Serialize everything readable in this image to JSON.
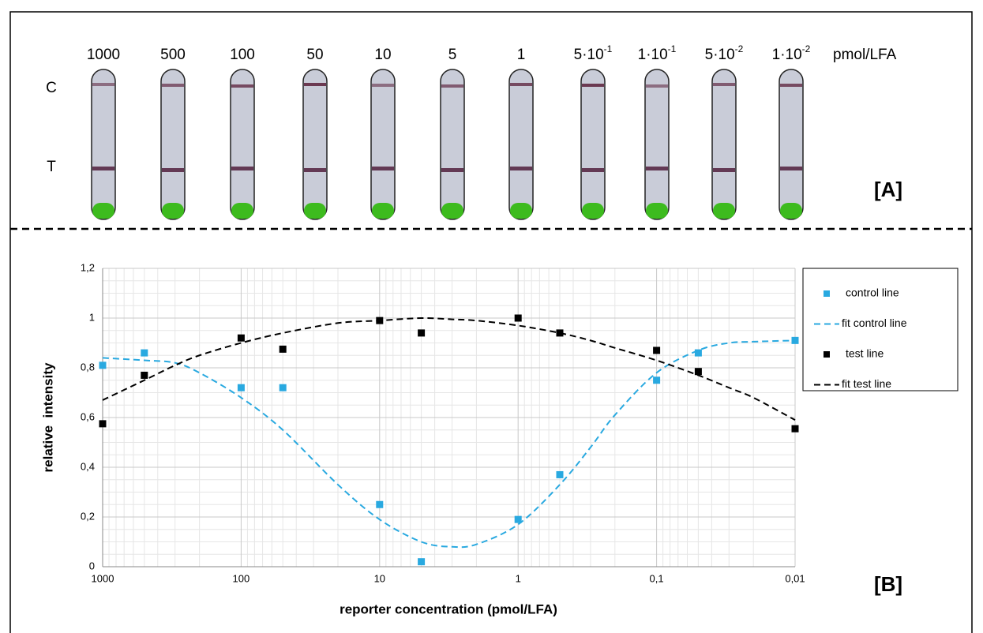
{
  "panel_a": {
    "labels": [
      "1000",
      "500",
      "100",
      "50",
      "10",
      "5",
      "1",
      {
        "base": "5·10",
        "exp": "-1"
      },
      {
        "base": "1·10",
        "exp": "-1"
      },
      {
        "base": "5·10",
        "exp": "-2"
      },
      {
        "base": "1·10",
        "exp": "-2"
      }
    ],
    "unit": "pmol/LFA",
    "c_label": "C",
    "t_label": "T",
    "tag": "[A]"
  },
  "chart_data": {
    "type": "scatter",
    "tag": "[B]",
    "x_label": "reporter concentration (pmol/LFA)",
    "y_label": "relative  intensity",
    "x_scale": "log",
    "xlim": [
      1000,
      0.01
    ],
    "xticks": [
      1000,
      100,
      10,
      1,
      {
        "value": 0.1,
        "label": "0,1"
      },
      {
        "value": 0.01,
        "label": "0,01"
      }
    ],
    "ylim": [
      0,
      1.2
    ],
    "yticks": [
      0,
      {
        "value": 0.2,
        "label": "0,2"
      },
      {
        "value": 0.4,
        "label": "0,4"
      },
      {
        "value": 0.6,
        "label": "0,6"
      },
      {
        "value": 0.8,
        "label": "0,8"
      },
      1,
      {
        "value": 1.2,
        "label": "1,2"
      }
    ],
    "grid": true,
    "minor_grid": true,
    "legend": "right",
    "series": [
      {
        "name": "control line",
        "color": "#29a9e0",
        "marker": "square",
        "x": [
          1000,
          500,
          100,
          50,
          10,
          5,
          1,
          0.5,
          0.1,
          0.05,
          0.01
        ],
        "values": [
          0.81,
          0.86,
          0.72,
          0.72,
          0.25,
          0.02,
          0.19,
          0.37,
          0.75,
          0.86,
          0.91
        ]
      },
      {
        "name": "fit control line",
        "color": "#29a9e0",
        "line": "dashed",
        "x": [
          1000,
          500,
          300,
          200,
          100,
          50,
          20,
          10,
          5,
          3,
          2,
          1,
          0.5,
          0.3,
          0.2,
          0.1,
          0.05,
          0.03,
          0.02,
          0.01
        ],
        "values": [
          0.84,
          0.83,
          0.82,
          0.78,
          0.68,
          0.55,
          0.33,
          0.19,
          0.1,
          0.08,
          0.09,
          0.17,
          0.33,
          0.48,
          0.61,
          0.78,
          0.87,
          0.9,
          0.905,
          0.91
        ]
      },
      {
        "name": "test line",
        "color": "#000000",
        "marker": "square",
        "x": [
          1000,
          500,
          100,
          50,
          10,
          5,
          1,
          0.5,
          0.1,
          0.05,
          0.01
        ],
        "values": [
          0.575,
          0.77,
          0.92,
          0.875,
          0.99,
          0.94,
          1.0,
          0.94,
          0.87,
          0.785,
          0.555
        ]
      },
      {
        "name": "fit test line",
        "color": "#000000",
        "line": "dashed",
        "x": [
          1000,
          500,
          300,
          200,
          100,
          50,
          20,
          10,
          5,
          3,
          2,
          1,
          0.5,
          0.3,
          0.2,
          0.1,
          0.05,
          0.03,
          0.02,
          0.01
        ],
        "values": [
          0.67,
          0.75,
          0.81,
          0.85,
          0.9,
          0.94,
          0.98,
          0.99,
          1.0,
          0.995,
          0.99,
          0.97,
          0.94,
          0.91,
          0.88,
          0.83,
          0.77,
          0.72,
          0.68,
          0.59
        ]
      }
    ]
  }
}
